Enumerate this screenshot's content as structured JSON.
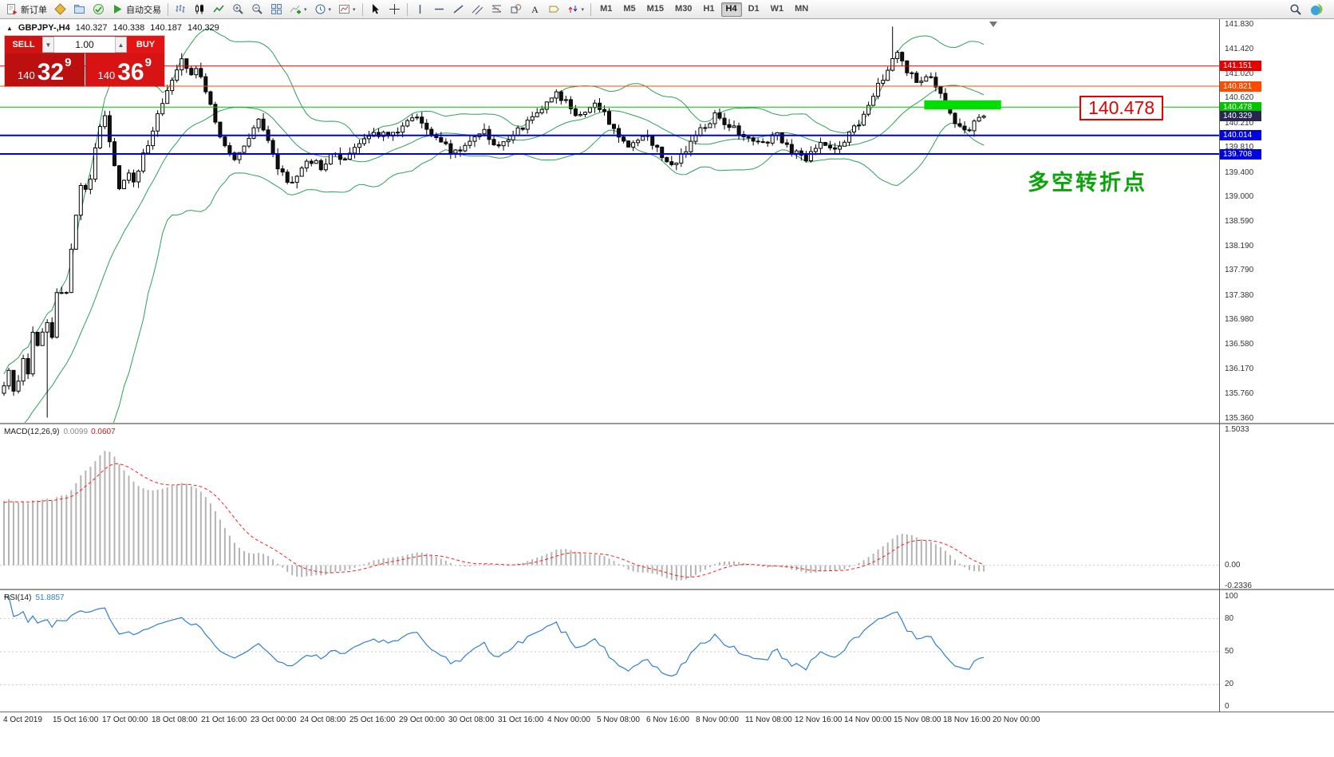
{
  "toolbar": {
    "new_order_label": "新订单",
    "autotrading_label": "自动交易",
    "timeframes": [
      "M1",
      "M5",
      "M15",
      "M30",
      "H1",
      "H4",
      "D1",
      "W1",
      "MN"
    ],
    "active_timeframe": "H4"
  },
  "chart_header": {
    "symbol": "GBPJPY-,H4",
    "open": "140.327",
    "high": "140.338",
    "low": "140.187",
    "close": "140.329"
  },
  "one_click": {
    "sell_label": "SELL",
    "buy_label": "BUY",
    "volume": "1.00",
    "bid": {
      "small": "140",
      "big": "32",
      "sup": "9"
    },
    "ask": {
      "small": "140",
      "big": "36",
      "sup": "9"
    }
  },
  "annotations": {
    "callout_text": "140.478",
    "note_text": "多空转折点"
  },
  "chart_data": {
    "type": "candlestick",
    "title": "GBPJPY- H4",
    "bars": 205,
    "y_axis": {
      "min": 135.36,
      "max": 141.83,
      "ticks": [
        "141.830",
        "141.420",
        "141.020",
        "140.620",
        "140.210",
        "139.810",
        "139.400",
        "139.000",
        "138.590",
        "138.190",
        "137.790",
        "137.380",
        "136.980",
        "136.580",
        "136.170",
        "135.760",
        "135.360"
      ]
    },
    "x_labels": [
      "4 Oct 2019",
      "15 Oct 16:00",
      "17 Oct 00:00",
      "18 Oct 08:00",
      "21 Oct 16:00",
      "23 Oct 00:00",
      "24 Oct 08:00",
      "25 Oct 16:00",
      "29 Oct 00:00",
      "30 Oct 08:00",
      "31 Oct 16:00",
      "4 Nov 00:00",
      "5 Nov 08:00",
      "6 Nov 16:00",
      "8 Nov 00:00",
      "11 Nov 08:00",
      "12 Nov 16:00",
      "14 Nov 00:00",
      "15 Nov 08:00",
      "18 Nov 16:00",
      "20 Nov 00:00"
    ],
    "price_path": [
      [
        0.0,
        135.85
      ],
      [
        0.006,
        136.15
      ],
      [
        0.012,
        135.65
      ],
      [
        0.018,
        136.45
      ],
      [
        0.024,
        136.05
      ],
      [
        0.03,
        136.85
      ],
      [
        0.036,
        136.5
      ],
      [
        0.042,
        137.05
      ],
      [
        0.048,
        136.6
      ],
      [
        0.055,
        137.55
      ],
      [
        0.062,
        137.2
      ],
      [
        0.07,
        138.35
      ],
      [
        0.078,
        139.25
      ],
      [
        0.086,
        139.0
      ],
      [
        0.094,
        139.85
      ],
      [
        0.102,
        140.4
      ],
      [
        0.11,
        139.75
      ],
      [
        0.118,
        139.1
      ],
      [
        0.126,
        139.45
      ],
      [
        0.134,
        139.15
      ],
      [
        0.142,
        139.7
      ],
      [
        0.152,
        140.1
      ],
      [
        0.162,
        140.55
      ],
      [
        0.172,
        141.0
      ],
      [
        0.181,
        141.25
      ],
      [
        0.19,
        140.95
      ],
      [
        0.199,
        141.1
      ],
      [
        0.208,
        140.6
      ],
      [
        0.217,
        140.15
      ],
      [
        0.227,
        139.8
      ],
      [
        0.238,
        139.6
      ],
      [
        0.249,
        140.0
      ],
      [
        0.259,
        140.25
      ],
      [
        0.269,
        139.9
      ],
      [
        0.279,
        139.5
      ],
      [
        0.29,
        139.2
      ],
      [
        0.301,
        139.45
      ],
      [
        0.312,
        139.6
      ],
      [
        0.324,
        139.5
      ],
      [
        0.336,
        139.7
      ],
      [
        0.35,
        139.6
      ],
      [
        0.364,
        139.9
      ],
      [
        0.378,
        140.1
      ],
      [
        0.392,
        139.95
      ],
      [
        0.406,
        140.15
      ],
      [
        0.42,
        140.3
      ],
      [
        0.434,
        140.1
      ],
      [
        0.448,
        139.85
      ],
      [
        0.462,
        139.7
      ],
      [
        0.476,
        139.9
      ],
      [
        0.49,
        140.05
      ],
      [
        0.504,
        139.85
      ],
      [
        0.518,
        140.0
      ],
      [
        0.532,
        140.2
      ],
      [
        0.547,
        140.45
      ],
      [
        0.562,
        140.7
      ],
      [
        0.576,
        140.5
      ],
      [
        0.589,
        140.3
      ],
      [
        0.601,
        140.55
      ],
      [
        0.613,
        140.35
      ],
      [
        0.626,
        140.05
      ],
      [
        0.64,
        139.8
      ],
      [
        0.654,
        140.0
      ],
      [
        0.668,
        139.75
      ],
      [
        0.682,
        139.55
      ],
      [
        0.697,
        139.8
      ],
      [
        0.712,
        140.1
      ],
      [
        0.727,
        140.35
      ],
      [
        0.742,
        140.15
      ],
      [
        0.757,
        139.98
      ],
      [
        0.772,
        139.85
      ],
      [
        0.787,
        140.05
      ],
      [
        0.802,
        139.8
      ],
      [
        0.817,
        139.62
      ],
      [
        0.832,
        139.85
      ],
      [
        0.847,
        139.72
      ],
      [
        0.862,
        140.0
      ],
      [
        0.877,
        140.35
      ],
      [
        0.891,
        140.8
      ],
      [
        0.905,
        141.2
      ],
      [
        0.914,
        141.35
      ],
      [
        0.923,
        141.05
      ],
      [
        0.933,
        140.9
      ],
      [
        0.943,
        141.0
      ],
      [
        0.953,
        140.72
      ],
      [
        0.963,
        140.5
      ],
      [
        0.973,
        140.18
      ],
      [
        0.983,
        140.05
      ],
      [
        0.991,
        140.2
      ],
      [
        1.0,
        140.33
      ]
    ],
    "spike_high": {
      "frac": 0.908,
      "price": 141.8
    },
    "spike_low": {
      "frac": 0.046,
      "price": 135.38
    },
    "bollinger": {
      "period": 20,
      "deviation": 2,
      "color": "#2ea05c"
    },
    "hlines": [
      {
        "price": 141.151,
        "label": "141.151",
        "color": "#e60000",
        "width": 1
      },
      {
        "price": 140.821,
        "label": "140.821",
        "color": "#ff4a00",
        "width": 1
      },
      {
        "price": 140.478,
        "label": "140.478",
        "color": "#00c400",
        "width": 1
      },
      {
        "price": 140.014,
        "label": "140.014",
        "color": "#0000e0",
        "width": 2
      },
      {
        "price": 139.708,
        "label": "139.708",
        "color": "#0000e0",
        "width": 2
      }
    ],
    "bid_marker": {
      "price": 140.329,
      "label": "140.329",
      "bg": "#26264f"
    },
    "highlight_rect": {
      "frac1": 0.938,
      "frac2": 1.016,
      "price_top": 140.59,
      "price_bottom": 140.44,
      "color": "#00dd00"
    },
    "indicators": {
      "macd": {
        "name": "MACD(12,26,9)",
        "value_main": "0.0099",
        "value_signal": "0.0607",
        "scale": [
          "1.5033",
          "0.00",
          "-0.2336"
        ],
        "scale_values": [
          1.5033,
          0,
          -0.2336
        ],
        "hist_color": "#b4b4b4",
        "signal_color": "#ff1e1e"
      },
      "rsi": {
        "name": "RSI(14)",
        "value": "51.8857",
        "scale": [
          "100",
          "80",
          "50",
          "20",
          "0"
        ],
        "scale_values": [
          100,
          80,
          50,
          20,
          0
        ],
        "levels": [
          80,
          50,
          20
        ],
        "color": "#2f7fd6"
      }
    }
  }
}
